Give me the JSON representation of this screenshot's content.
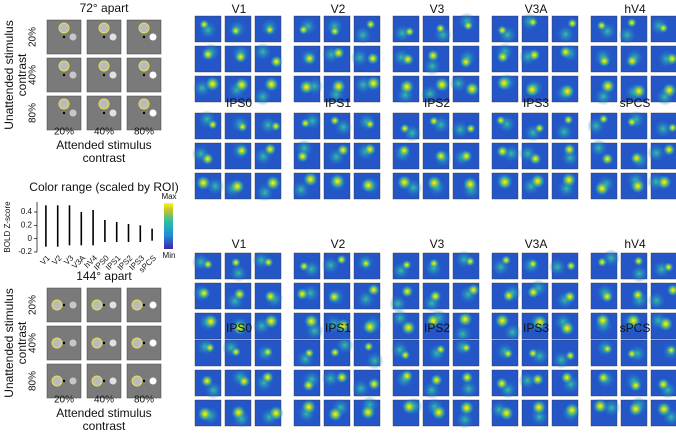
{
  "panels": [
    {
      "title": "72° apart",
      "row_labels": [
        "20%",
        "40%",
        "80%"
      ],
      "col_labels": [
        "20%",
        "40%",
        "80%"
      ],
      "y_label": [
        "Unattended stimulus",
        "contrast"
      ],
      "x_label": [
        "Attended stimulus",
        "contrast"
      ]
    },
    {
      "title": "144° apart",
      "row_labels": [
        "20%",
        "40%",
        "80%"
      ],
      "col_labels": [
        "20%",
        "40%",
        "80%"
      ],
      "y_label": [
        "Unattended stimulus",
        "contrast"
      ],
      "x_label": [
        "Attended stimulus",
        "contrast"
      ]
    }
  ],
  "chart_data": {
    "type": "range",
    "title": "Color range (scaled by ROI)",
    "y_label": "BOLD Z-score",
    "categories": [
      "V1",
      "V2",
      "V3",
      "V3A",
      "hV4",
      "IPS0",
      "IPS1",
      "IPS2",
      "IPS3",
      "sPCS"
    ],
    "ranges": [
      [
        -0.12,
        0.5
      ],
      [
        -0.12,
        0.5
      ],
      [
        -0.1,
        0.5
      ],
      [
        -0.1,
        0.4
      ],
      [
        -0.1,
        0.43
      ],
      [
        -0.05,
        0.28
      ],
      [
        -0.05,
        0.25
      ],
      [
        -0.05,
        0.22
      ],
      [
        -0.05,
        0.2
      ],
      [
        -0.03,
        0.15
      ]
    ],
    "color": "#000000",
    "ylim": [
      -0.2,
      0.55
    ],
    "yticks": [
      -0.2,
      0,
      0.2,
      0.4
    ],
    "colorbar": {
      "max_label": "Max",
      "min_label": "Min"
    }
  },
  "map_blocks": [
    [
      [
        "V1",
        "V2",
        "V3",
        "V3A",
        "hV4"
      ],
      [
        "IPS0",
        "IPS1",
        "IPS2",
        "IPS3",
        "sPCS"
      ]
    ],
    [
      [
        "V1",
        "V2",
        "V3",
        "V3A",
        "hV4"
      ],
      [
        "IPS0",
        "IPS1",
        "IPS2",
        "IPS3",
        "sPCS"
      ]
    ]
  ]
}
